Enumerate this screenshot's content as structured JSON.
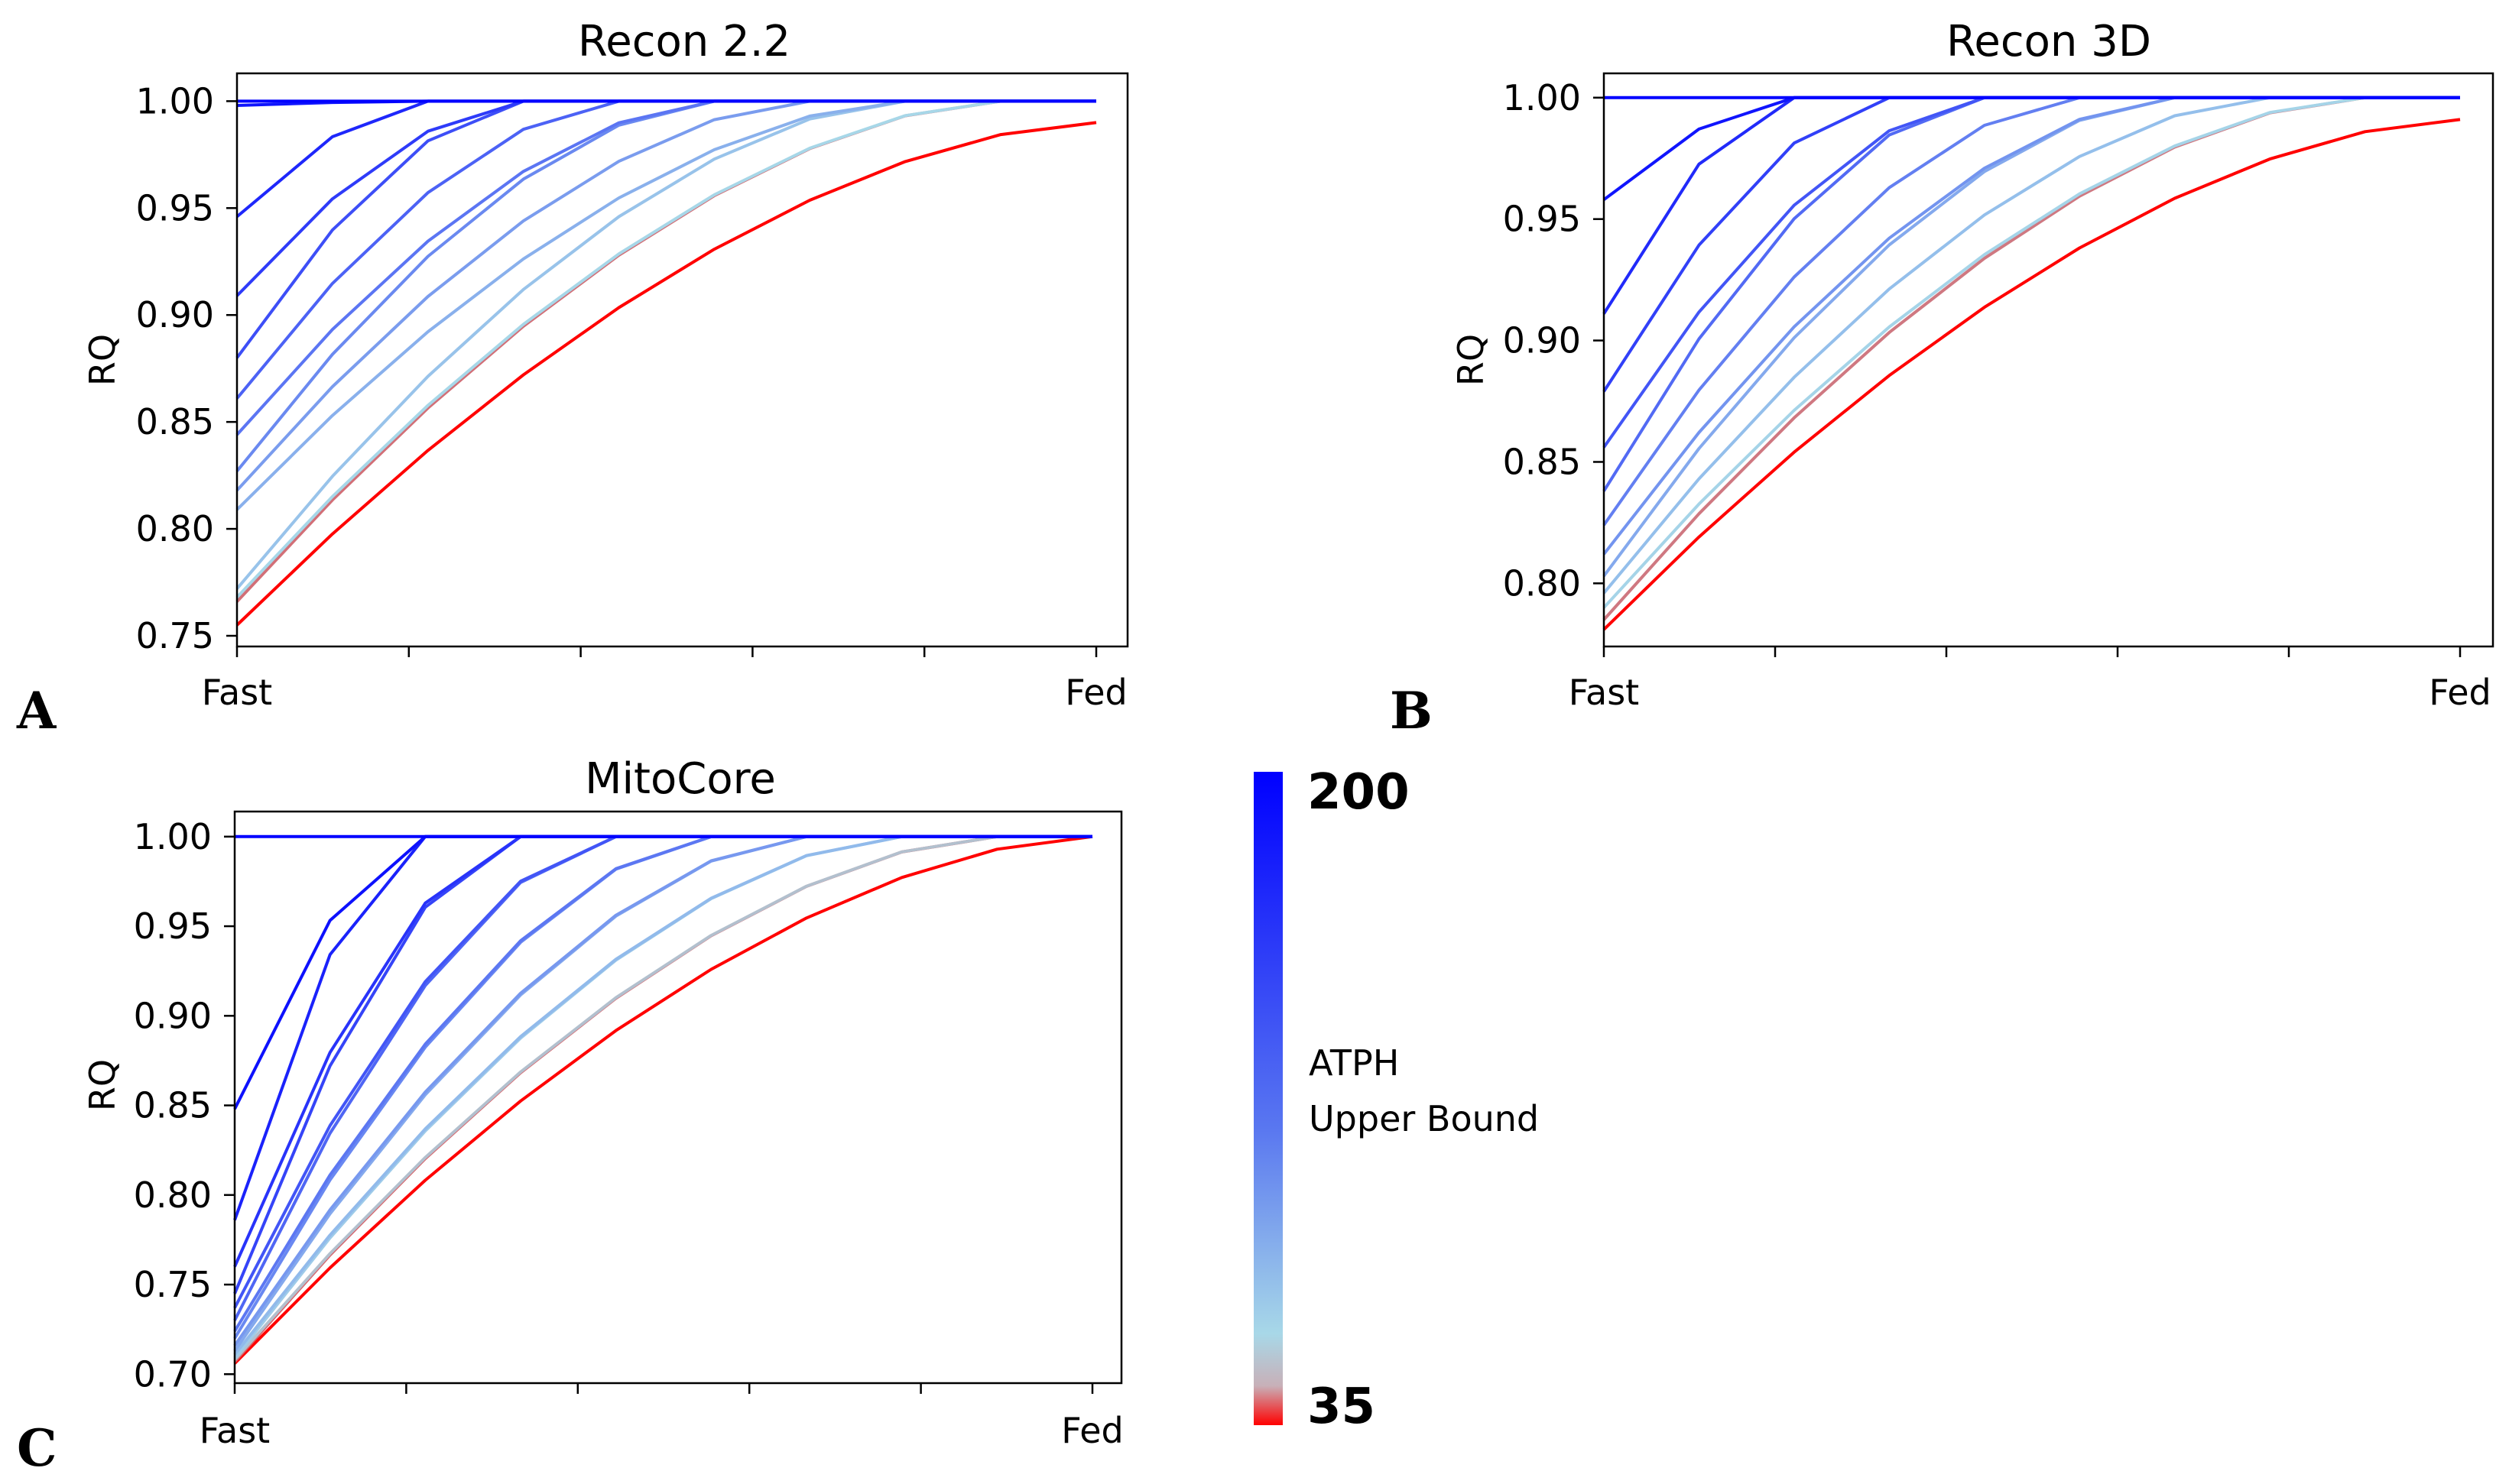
{
  "chart_data": [
    {
      "panel": "A",
      "type": "line",
      "title": "Recon 2.2",
      "xlabel": "",
      "ylabel": "RQ",
      "x_tick_labels": [
        "Fast",
        "",
        "",
        "",
        "",
        "Fed"
      ],
      "x_points": 10,
      "ylim": [
        0.745,
        1.013
      ],
      "yticks": [
        "0.75",
        "0.80",
        "0.85",
        "0.90",
        "0.95",
        "1.00"
      ],
      "series_start_values": [
        1.0,
        0.998,
        0.946,
        0.909,
        0.88,
        0.861,
        0.844,
        0.827,
        0.818,
        0.809,
        0.772,
        0.768,
        0.766,
        0.755
      ],
      "series_end_value_lowest": 0.99,
      "colormap_range": [
        35,
        200
      ]
    },
    {
      "panel": "B",
      "type": "line",
      "title": "Recon 3D",
      "xlabel": "",
      "ylabel": "RQ",
      "x_tick_labels": [
        "Fast",
        "",
        "",
        "",
        "",
        "Fed"
      ],
      "x_points": 10,
      "ylim": [
        0.774,
        1.01
      ],
      "yticks": [
        "0.80",
        "0.85",
        "0.90",
        "0.95",
        "1.00"
      ],
      "series_start_values": [
        1.0,
        0.958,
        0.911,
        0.879,
        0.856,
        0.838,
        0.824,
        0.812,
        0.803,
        0.796,
        0.79,
        0.785,
        0.781
      ],
      "series_end_value_lowest": 0.991,
      "colormap_range": [
        35,
        200
      ]
    },
    {
      "panel": "C",
      "type": "line",
      "title": "MitoCore",
      "xlabel": "",
      "ylabel": "RQ",
      "x_tick_labels": [
        "Fast",
        "",
        "",
        "",
        "",
        "Fed"
      ],
      "x_points": 10,
      "ylim": [
        0.695,
        1.014
      ],
      "yticks": [
        "0.70",
        "0.75",
        "0.80",
        "0.85",
        "0.90",
        "0.95",
        "1.00"
      ],
      "series_start_values": [
        1.0,
        0.848,
        0.786,
        0.76,
        0.745,
        0.737,
        0.73,
        0.724,
        0.72,
        0.716,
        0.713,
        0.711,
        0.709,
        0.708,
        0.707,
        0.706
      ],
      "series_end_value_lowest": 1.0,
      "colormap_range": [
        35,
        200
      ]
    }
  ],
  "colorbar": {
    "top_label": "200",
    "bottom_label": "35",
    "label_line1": "ATPH",
    "label_line2": "Upper Bound",
    "colors": {
      "red": "#ff0000",
      "light": "#a8d8e8",
      "blue": "#0000ff"
    }
  }
}
